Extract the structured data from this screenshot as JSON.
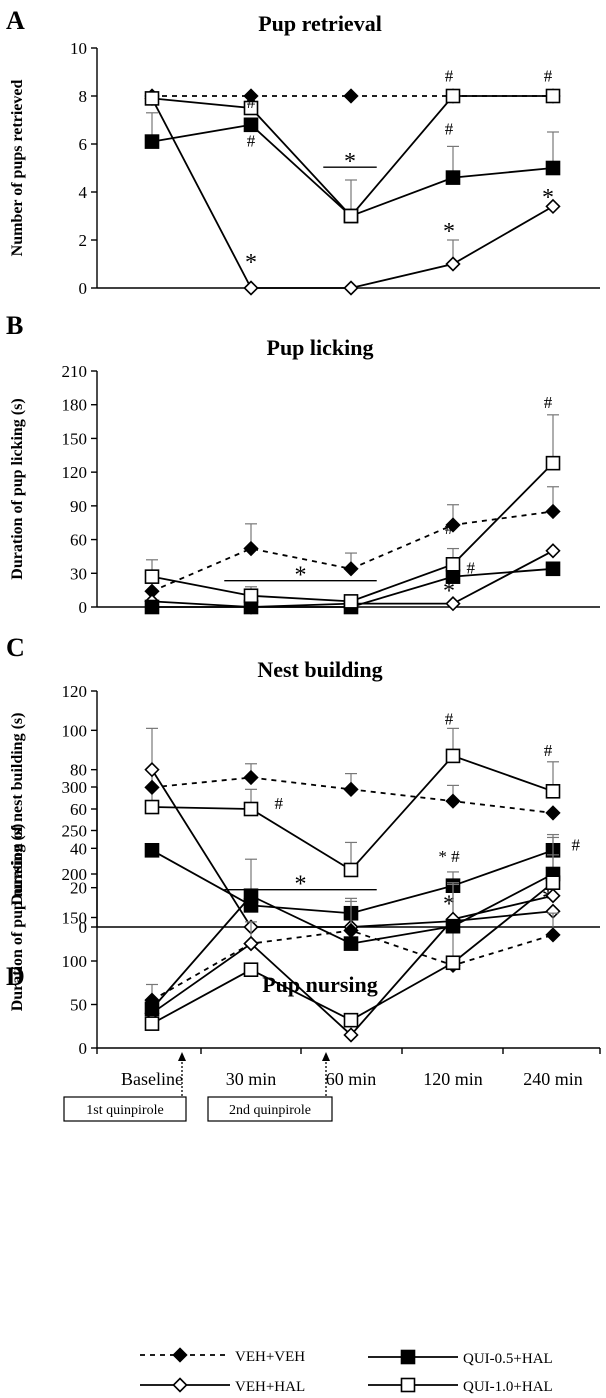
{
  "figure": {
    "x_categories": [
      "Baseline",
      "30 min",
      "60 min",
      "120 min",
      "240 min"
    ],
    "arrow_labels": [
      "1st quinpirole",
      "2nd quinpirole"
    ],
    "legend": [
      {
        "label": "VEH+VEH",
        "series": "veh_veh"
      },
      {
        "label": "VEH+HAL",
        "series": "veh_hal"
      },
      {
        "label": "QUI-0.5+HAL",
        "series": "qui05_hal"
      },
      {
        "label": "QUI-1.0+HAL",
        "series": "qui10_hal"
      }
    ]
  },
  "styles": {
    "veh_veh": {
      "marker": "diamond",
      "fill": "#000000",
      "dash": "5,5"
    },
    "veh_hal": {
      "marker": "diamond",
      "fill": "#ffffff",
      "dash": ""
    },
    "qui05_hal": {
      "marker": "square",
      "fill": "#000000",
      "dash": ""
    },
    "qui10_hal": {
      "marker": "square",
      "fill": "#ffffff",
      "dash": ""
    }
  },
  "chart_data": [
    {
      "panel": "A",
      "type": "line",
      "title": "Pup retrieval",
      "ylabel": "Number of pups retrieved",
      "ylim": [
        0,
        10
      ],
      "yticks": [
        0,
        2,
        4,
        6,
        8,
        10
      ],
      "series": [
        {
          "key": "veh_veh",
          "values": [
            8,
            8,
            8,
            8,
            8
          ],
          "errors": [
            0,
            0,
            0,
            0,
            0
          ]
        },
        {
          "key": "veh_hal",
          "values": [
            7.9,
            0,
            0,
            1,
            3.4
          ],
          "errors": [
            0,
            0,
            0,
            1.0,
            0
          ]
        },
        {
          "key": "qui05_hal",
          "values": [
            6.1,
            6.8,
            3.0,
            4.6,
            5.0
          ],
          "errors": [
            1.2,
            0,
            0,
            1.3,
            1.5
          ]
        },
        {
          "key": "qui10_hal",
          "values": [
            7.9,
            7.5,
            3.0,
            8,
            8
          ],
          "errors": [
            0,
            0,
            1.5,
            0,
            0
          ]
        }
      ],
      "annotations": [
        {
          "text": "#",
          "x": 1,
          "y": 7.5
        },
        {
          "text": "#",
          "x": 1,
          "y": 5.9
        },
        {
          "text": "*",
          "x": 1,
          "y": 1.0
        },
        {
          "text": "*",
          "x": 2,
          "y": 5.2,
          "bar": [
            1.73,
            2.27
          ]
        },
        {
          "text": "#",
          "x": 3,
          "y": 8.6
        },
        {
          "text": "#",
          "x": 3,
          "y": 6.4
        },
        {
          "text": "*",
          "x": 3,
          "y": 2.3
        },
        {
          "text": "#",
          "x": 4,
          "y": 8.6
        },
        {
          "text": "*",
          "x": 4,
          "y": 3.7
        }
      ]
    },
    {
      "panel": "B",
      "type": "line",
      "title": "Pup licking",
      "ylabel": "Duration of pup licking (s)",
      "ylim": [
        0,
        210
      ],
      "yticks": [
        0,
        30,
        60,
        90,
        120,
        150,
        180,
        210
      ],
      "series": [
        {
          "key": "veh_veh",
          "values": [
            14,
            52,
            34,
            73,
            85
          ],
          "errors": [
            0,
            22,
            14,
            18,
            22
          ]
        },
        {
          "key": "veh_hal",
          "values": [
            5,
            0,
            3,
            3,
            50
          ],
          "errors": [
            0,
            0,
            0,
            0,
            0
          ]
        },
        {
          "key": "qui05_hal",
          "values": [
            0,
            0,
            0,
            27,
            34
          ],
          "errors": [
            0,
            0,
            0,
            0,
            0
          ]
        },
        {
          "key": "qui10_hal",
          "values": [
            27,
            10,
            5,
            38,
            128
          ],
          "errors": [
            15,
            8,
            0,
            14,
            43
          ]
        }
      ],
      "annotations": [
        {
          "text": "*",
          "x": 1.5,
          "y": 27,
          "bar": [
            0.73,
            2.27
          ]
        },
        {
          "text": "#",
          "x": 3,
          "y": 65
        },
        {
          "text": "#",
          "x": 3.22,
          "y": 30
        },
        {
          "text": "*",
          "x": 3,
          "y": 13
        },
        {
          "text": "#",
          "x": 4,
          "y": 177
        }
      ]
    },
    {
      "panel": "C",
      "type": "line",
      "title": "Nest building",
      "ylabel": "Duration of nest building (s)",
      "ylim": [
        0,
        120
      ],
      "yticks": [
        0,
        20,
        40,
        60,
        80,
        100,
        120
      ],
      "series": [
        {
          "key": "veh_veh",
          "values": [
            71,
            76,
            70,
            64,
            58
          ],
          "errors": [
            0,
            7,
            8,
            8,
            0
          ]
        },
        {
          "key": "veh_hal",
          "values": [
            80,
            0,
            0,
            3,
            8
          ],
          "errors": [
            0,
            0,
            0,
            0,
            0
          ]
        },
        {
          "key": "qui05_hal",
          "values": [
            39,
            11,
            7,
            21,
            39
          ],
          "errors": [
            0,
            5,
            6,
            7,
            8
          ]
        },
        {
          "key": "qui10_hal",
          "values": [
            61,
            60,
            29,
            87,
            69
          ],
          "errors": [
            40,
            10,
            14,
            14,
            15
          ]
        }
      ],
      "annotations": [
        {
          "text": "#",
          "x": 1.28,
          "y": 60
        },
        {
          "text": "*",
          "x": 1.5,
          "y": 21,
          "bar": [
            0.73,
            2.27
          ]
        },
        {
          "text": "#",
          "x": 3,
          "y": 103
        },
        {
          "text": "* #",
          "x": 3,
          "y": 33
        },
        {
          "text": "*",
          "x": 3,
          "y": 11
        },
        {
          "text": "#",
          "x": 4,
          "y": 87
        },
        {
          "text": "#",
          "x": 4.28,
          "y": 39
        },
        {
          "text": "*",
          "x": 4,
          "y": 14
        }
      ]
    },
    {
      "panel": "D",
      "type": "line",
      "title": "Pup nursing",
      "ylabel": "Duration of pup nursing (s)",
      "ylim": [
        0,
        300
      ],
      "yticks": [
        0,
        50,
        100,
        150,
        200,
        250,
        300
      ],
      "series": [
        {
          "key": "veh_veh",
          "values": [
            55,
            120,
            135,
            95,
            130
          ],
          "errors": [
            18,
            0,
            37,
            0,
            25
          ]
        },
        {
          "key": "veh_hal",
          "values": [
            40,
            120,
            15,
            148,
            175
          ],
          "errors": [
            0,
            25,
            0,
            40,
            0
          ]
        },
        {
          "key": "qui05_hal",
          "values": [
            45,
            175,
            120,
            140,
            200
          ],
          "errors": [
            0,
            42,
            0,
            50,
            42
          ]
        },
        {
          "key": "qui10_hal",
          "values": [
            28,
            90,
            32,
            98,
            190
          ],
          "errors": [
            0,
            0,
            0,
            45,
            32
          ]
        }
      ],
      "annotations": []
    }
  ]
}
